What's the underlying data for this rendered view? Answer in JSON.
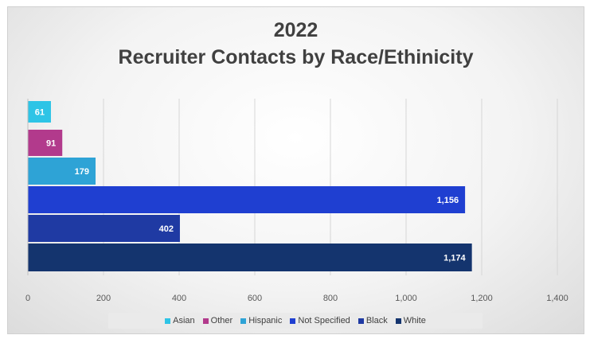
{
  "chart_data": {
    "type": "bar",
    "orientation": "horizontal",
    "title_line1": "2022",
    "title_line2": "Recruiter Contacts by Race/Ethinicity",
    "xlim": [
      0,
      1400
    ],
    "xticks": [
      "0",
      "200",
      "400",
      "600",
      "800",
      "1,000",
      "1,200",
      "1,400"
    ],
    "grid": "vertical",
    "legend_position": "bottom",
    "series": [
      {
        "name": "Asian",
        "value": 61,
        "label": "61",
        "color": "#2ec4e6"
      },
      {
        "name": "Other",
        "value": 91,
        "label": "91",
        "color": "#b23a8c"
      },
      {
        "name": "Hispanic",
        "value": 179,
        "label": "179",
        "color": "#2ea3d6"
      },
      {
        "name": "Not Specified",
        "value": 1156,
        "label": "1,156",
        "color": "#1f3fd1"
      },
      {
        "name": "Black",
        "value": 402,
        "label": "402",
        "color": "#1f3aa3"
      },
      {
        "name": "White",
        "value": 1174,
        "label": "1,174",
        "color": "#14346e"
      }
    ]
  }
}
